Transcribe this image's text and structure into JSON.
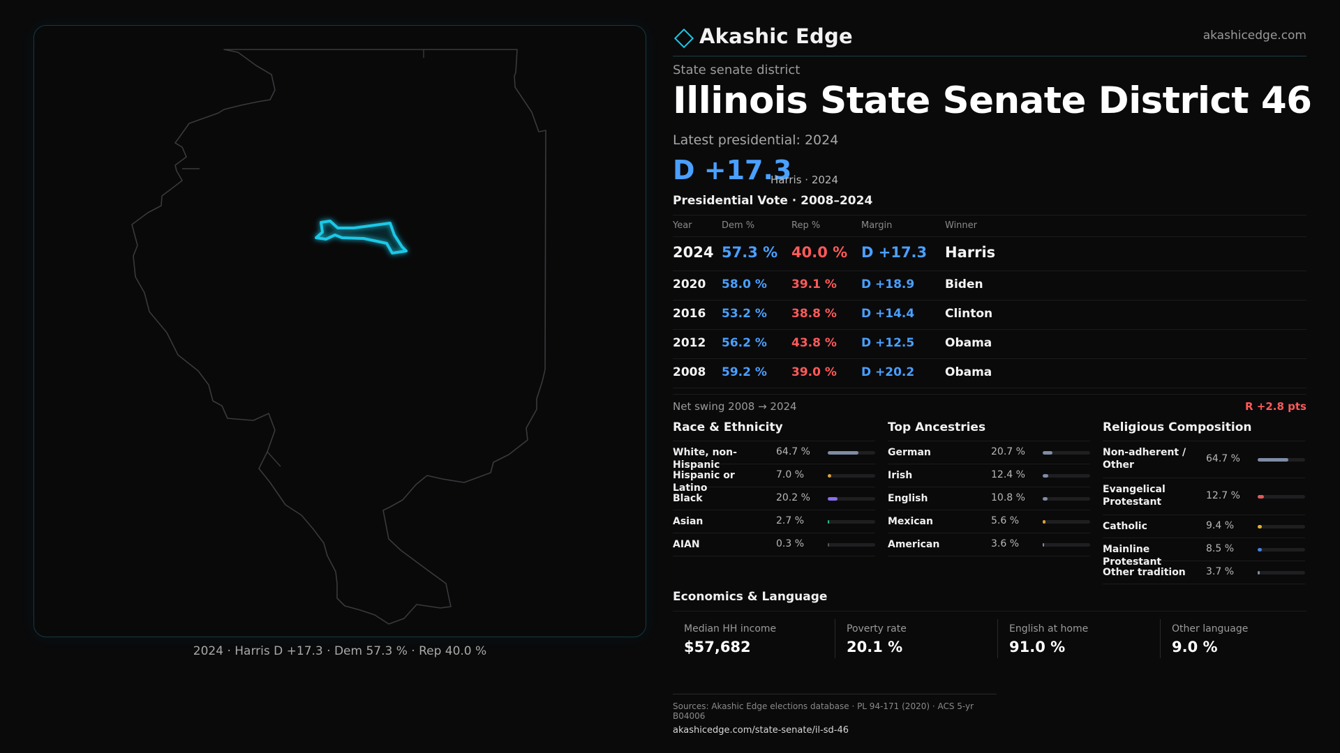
{
  "brand": {
    "name": "Akashic Edge",
    "site": "akashicedge.com",
    "accent": "#1fc8e6"
  },
  "header": {
    "kicker": "State senate district",
    "title": "Illinois State Senate District 46",
    "latest": "Latest presidential: 2024",
    "margin": "D +17.3",
    "margin_sub": "Harris · 2024"
  },
  "map": {
    "state": "Illinois",
    "caption": "2024 · Harris D +17.3 · Dem 57.3 % · Rep 40.0 %",
    "district_color": "#1fc8e6",
    "outline_color": "#3a3a3d"
  },
  "presidential": {
    "title": "Presidential Vote · 2008–2024",
    "headers": {
      "year": "Year",
      "dem": "Dem %",
      "rep": "Rep %",
      "margin": "Margin",
      "winner": "Winner"
    },
    "rows": [
      {
        "year": "2024",
        "dem": "57.3 %",
        "rep": "40.0 %",
        "margin": "D +17.3",
        "winner": "Harris"
      },
      {
        "year": "2020",
        "dem": "58.0 %",
        "rep": "39.1 %",
        "margin": "D +18.9",
        "winner": "Biden"
      },
      {
        "year": "2016",
        "dem": "53.2 %",
        "rep": "38.8 %",
        "margin": "D +14.4",
        "winner": "Clinton"
      },
      {
        "year": "2012",
        "dem": "56.2 %",
        "rep": "43.8 %",
        "margin": "D +12.5",
        "winner": "Obama"
      },
      {
        "year": "2008",
        "dem": "59.2 %",
        "rep": "39.0 %",
        "margin": "D +20.2",
        "winner": "Obama"
      }
    ],
    "swing_label": "Net swing 2008 → 2024",
    "swing_value": "R +2.8 pts"
  },
  "chart_data": [
    {
      "type": "table",
      "title": "Presidential Vote · 2008–2024",
      "columns": [
        "Year",
        "Dem %",
        "Rep %",
        "Margin",
        "Winner"
      ],
      "x": [
        2024,
        2020,
        2016,
        2012,
        2008
      ],
      "series": [
        {
          "name": "Dem %",
          "values": [
            57.3,
            58.0,
            53.2,
            56.2,
            59.2
          ]
        },
        {
          "name": "Rep %",
          "values": [
            40.0,
            39.1,
            38.8,
            43.8,
            39.0
          ]
        }
      ]
    },
    {
      "type": "bar",
      "title": "Race & Ethnicity",
      "categories": [
        "White, non-Hispanic",
        "Hispanic or Latino",
        "Black",
        "Asian",
        "AIAN"
      ],
      "values": [
        64.7,
        7.0,
        20.2,
        2.7,
        0.3
      ],
      "colors": [
        "#7f8ca3",
        "#d9a23a",
        "#8a6cf0",
        "#1fbf8a",
        "#555555"
      ]
    },
    {
      "type": "bar",
      "title": "Top Ancestries",
      "categories": [
        "German",
        "Irish",
        "English",
        "Mexican",
        "American"
      ],
      "values": [
        20.7,
        12.4,
        10.8,
        5.6,
        3.6
      ],
      "colors": [
        "#7f8ca3",
        "#7f8ca3",
        "#7f8ca3",
        "#d9a23a",
        "#7f8ca3"
      ]
    },
    {
      "type": "bar",
      "title": "Religious Composition",
      "categories": [
        "Non-adherent / Other",
        "Evangelical Protestant",
        "Catholic",
        "Mainline Protestant",
        "Other tradition"
      ],
      "values": [
        64.7,
        12.7,
        9.4,
        8.5,
        3.7
      ],
      "colors": [
        "#7f8ca3",
        "#e05a5a",
        "#e0b030",
        "#4a7fe0",
        "#7f8ca3"
      ]
    }
  ],
  "demographics": [
    {
      "title": "Race & Ethnicity",
      "rows": [
        {
          "label": "White, non-Hispanic",
          "value": "64.7 %"
        },
        {
          "label": "Hispanic or Latino",
          "value": "7.0 %"
        },
        {
          "label": "Black",
          "value": "20.2 %"
        },
        {
          "label": "Asian",
          "value": "2.7 %"
        },
        {
          "label": "AIAN",
          "value": "0.3 %"
        }
      ]
    },
    {
      "title": "Top Ancestries",
      "rows": [
        {
          "label": "German",
          "value": "20.7 %"
        },
        {
          "label": "Irish",
          "value": "12.4 %"
        },
        {
          "label": "English",
          "value": "10.8 %"
        },
        {
          "label": "Mexican",
          "value": "5.6 %"
        },
        {
          "label": "American",
          "value": "3.6 %"
        }
      ]
    },
    {
      "title": "Religious Composition",
      "rows": [
        {
          "label": "Non-adherent / Other",
          "value": "64.7 %"
        },
        {
          "label": "Evangelical Protestant",
          "value": "12.7 %"
        },
        {
          "label": "Catholic",
          "value": "9.4 %"
        },
        {
          "label": "Mainline Protestant",
          "value": "8.5 %"
        },
        {
          "label": "Other tradition",
          "value": "3.7 %"
        }
      ]
    }
  ],
  "economics": {
    "title": "Economics & Language",
    "items": [
      {
        "label": "Median HH income",
        "value": "$57,682"
      },
      {
        "label": "Poverty rate",
        "value": "20.1 %"
      },
      {
        "label": "English at home",
        "value": "91.0 %"
      },
      {
        "label": "Other language",
        "value": "9.0 %"
      }
    ]
  },
  "sources": {
    "text": "Sources: Akashic Edge elections database · PL 94-171 (2020) · ACS 5-yr B04006",
    "url": "akashicedge.com/state-senate/il-sd-46"
  }
}
